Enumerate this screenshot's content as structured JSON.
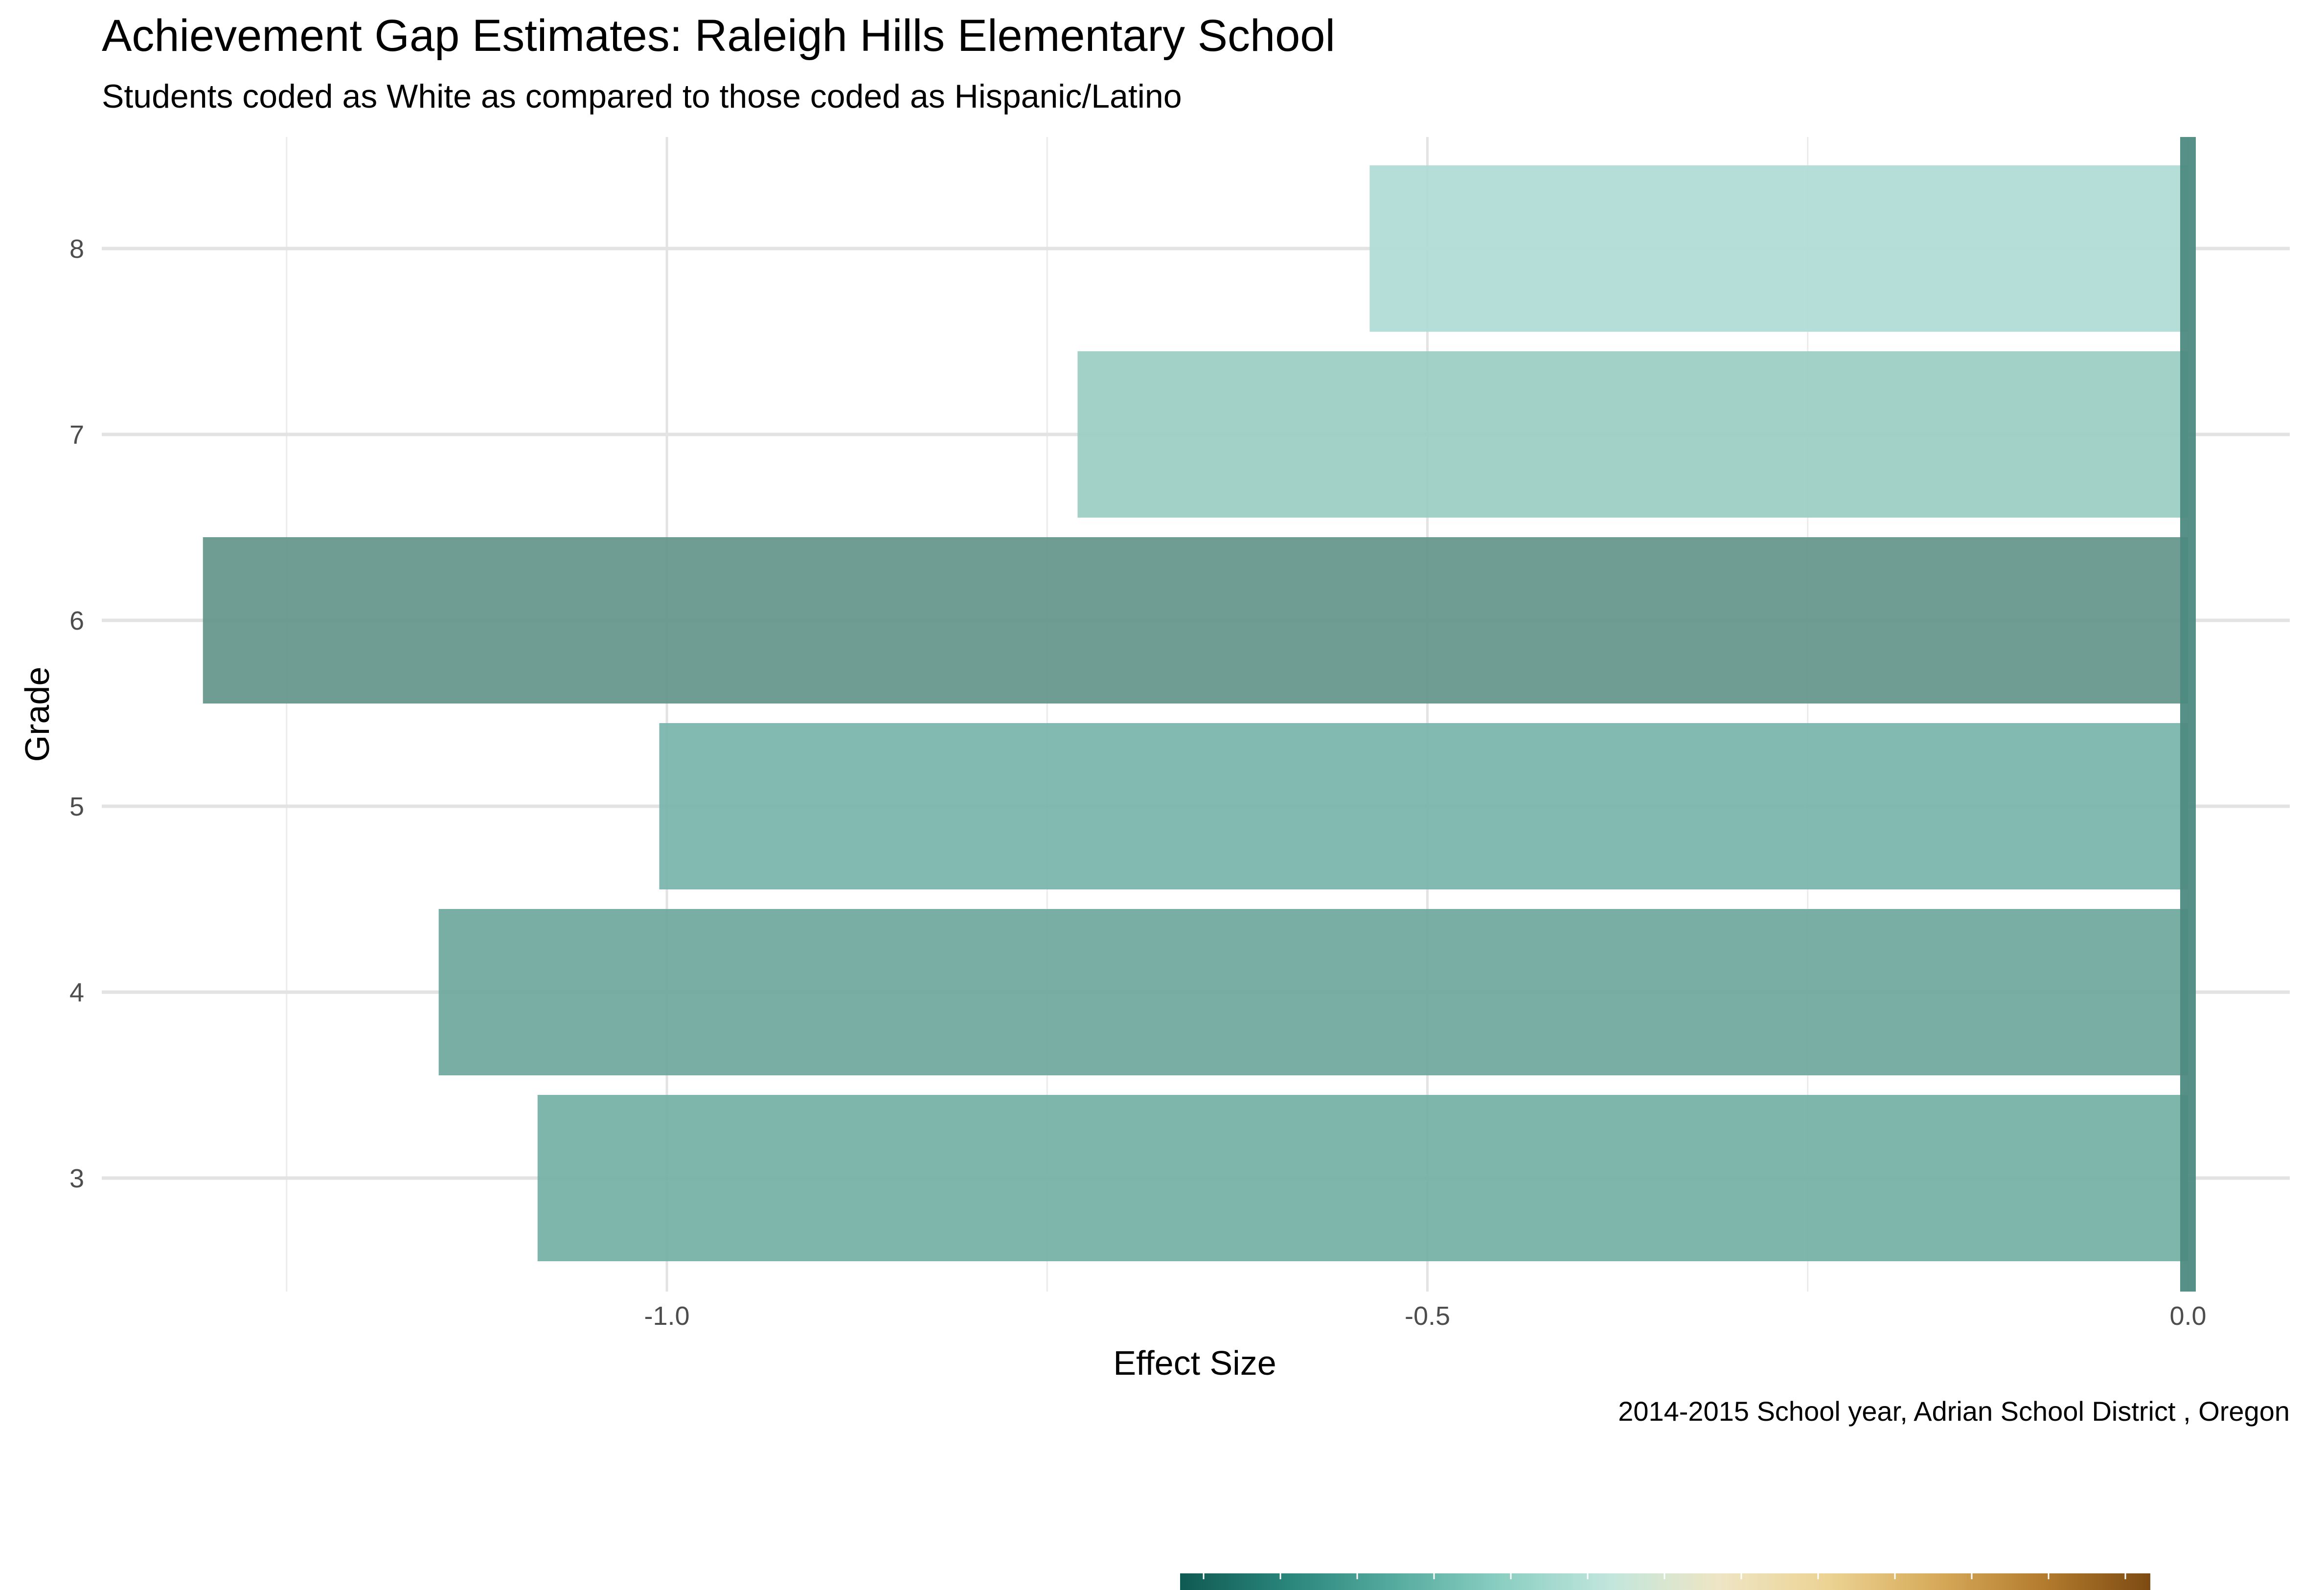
{
  "chart_data": {
    "type": "bar",
    "orientation": "horizontal",
    "title": "Achievement Gap Estimates: Raleigh Hills Elementary School",
    "subtitle": "Students coded as White as compared to those coded as Hispanic/Latino",
    "caption": "2014-2015 School year,  Adrian School District , Oregon",
    "xlabel": "Effect Size",
    "ylabel": "Grade",
    "categories": [
      "3",
      "4",
      "5",
      "6",
      "7",
      "8"
    ],
    "values": [
      -1.085,
      -1.15,
      -1.005,
      -1.305,
      -0.73,
      -0.538
    ],
    "bar_colors": [
      "#74b0a5",
      "#6fa89e",
      "#79b4aa",
      "#64958b",
      "#9bcdc4",
      "#b0dcd6"
    ],
    "x_ticks": [
      "-1.0",
      "-0.5",
      "0.0"
    ],
    "x_tick_values": [
      -1.0,
      -0.5,
      0.0
    ],
    "xlim": [
      -1.36,
      0.065
    ],
    "grid": true,
    "reference_line": {
      "x": 0,
      "color": "#4e8a80"
    },
    "legend": {
      "type": "colorbar",
      "placement": "bottom",
      "colors": [
        "#0f5a52",
        "#2a857b",
        "#56ab9f",
        "#8ccfc3",
        "#c2e6dc",
        "#eee5c4",
        "#ecd394",
        "#d7ab5b",
        "#b47c2e",
        "#7d4b12"
      ]
    }
  }
}
